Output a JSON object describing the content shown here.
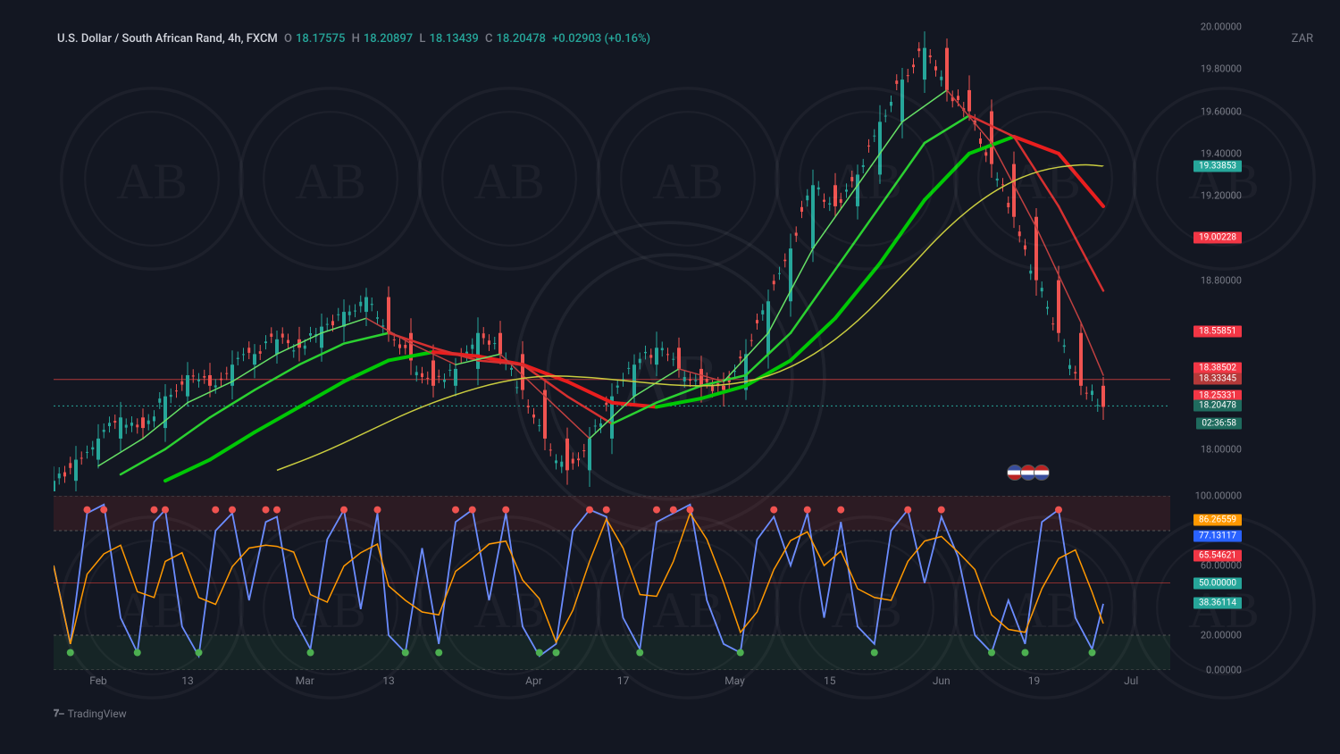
{
  "header": {
    "pair": "U.S. Dollar / South African Rand, 4h, FXCM",
    "O_label": "O",
    "O": "18.17575",
    "H_label": "H",
    "H": "18.20897",
    "L_label": "L",
    "L": "18.13439",
    "C_label": "C",
    "C": "18.20478",
    "change": "+0.02903 (+0.16%)",
    "currency": "ZAR"
  },
  "main": {
    "ymin": 17.8,
    "ymax": 20.0,
    "yticks": [
      {
        "v": 20.0,
        "l": "20.00000"
      },
      {
        "v": 19.8,
        "l": "19.80000"
      },
      {
        "v": 19.6,
        "l": "19.60000"
      },
      {
        "v": 19.4,
        "l": "19.40000"
      },
      {
        "v": 19.2,
        "l": "19.20000"
      },
      {
        "v": 18.8,
        "l": "18.80000"
      },
      {
        "v": 18.0,
        "l": "18.00000"
      }
    ],
    "price_tags": [
      {
        "v": 19.33853,
        "l": "19.33853",
        "bg": "#26a69a"
      },
      {
        "v": 19.00228,
        "l": "19.00228",
        "bg": "#f23645"
      },
      {
        "v": 18.55851,
        "l": "18.55851",
        "bg": "#f23645"
      },
      {
        "v": 18.38502,
        "l": "18.38502",
        "bg": "#f23645"
      },
      {
        "v": 18.33345,
        "l": "18.33345",
        "bg": "#b33939"
      },
      {
        "v": 18.25331,
        "l": "18.25331",
        "bg": "#f23645"
      },
      {
        "v": 18.20478,
        "l": "18.20478",
        "bg": "#1f6b5e"
      },
      {
        "v": 18.12,
        "l": "02:36:58",
        "bg": "#1f6b5e"
      }
    ],
    "hline_red": 18.33,
    "candles_color_up": "#26a69a",
    "candles_color_down": "#ef5350",
    "ma_green_thick": "#00c805",
    "ma_green_thin": "#4caf50",
    "ma_red_thick": "#e91e1e",
    "ma_red_thin": "#b71c1c",
    "ma_yellow": "#c9cc3f",
    "grid_color": "#1e222d"
  },
  "indicator": {
    "ymin": 0,
    "ymax": 100,
    "yticks": [
      {
        "v": 100,
        "l": "100.00000"
      },
      {
        "v": 60,
        "l": "60.00000"
      },
      {
        "v": 20,
        "l": "20.00000"
      },
      {
        "v": 0,
        "l": "0.00000"
      }
    ],
    "price_tags": [
      {
        "v": 86.26559,
        "l": "86.26559",
        "bg": "#ff9800"
      },
      {
        "v": 77.13117,
        "l": "77.13117",
        "bg": "#2962ff"
      },
      {
        "v": 65.54621,
        "l": "65.54621",
        "bg": "#f23645"
      },
      {
        "v": 50.0,
        "l": "50.00000",
        "bg": "#26a69a"
      },
      {
        "v": 38.36114,
        "l": "38.36114",
        "bg": "#26a69a"
      }
    ],
    "overbought_fill": "rgba(120,40,40,0.25)",
    "oversold_fill": "rgba(30,80,50,0.25)",
    "line_blue": "#6b8cff",
    "line_orange": "#ff9800",
    "dot_green": "#4caf50",
    "dot_red": "#ef5350"
  },
  "x_axis": {
    "ticks": [
      {
        "x": 0.04,
        "l": "Feb"
      },
      {
        "x": 0.12,
        "l": "13"
      },
      {
        "x": 0.225,
        "l": "Mar"
      },
      {
        "x": 0.3,
        "l": "13"
      },
      {
        "x": 0.43,
        "l": "Apr"
      },
      {
        "x": 0.51,
        "l": "17"
      },
      {
        "x": 0.61,
        "l": "May"
      },
      {
        "x": 0.695,
        "l": "15"
      },
      {
        "x": 0.795,
        "l": "Jun"
      },
      {
        "x": 0.878,
        "l": "19"
      },
      {
        "x": 0.965,
        "l": "Jul"
      }
    ]
  },
  "footer": {
    "brand": "TradingView"
  },
  "price_path": [
    [
      0.0,
      17.85
    ],
    [
      0.02,
      17.95
    ],
    [
      0.04,
      18.05
    ],
    [
      0.06,
      18.15
    ],
    [
      0.08,
      18.1
    ],
    [
      0.1,
      18.25
    ],
    [
      0.12,
      18.35
    ],
    [
      0.14,
      18.3
    ],
    [
      0.16,
      18.4
    ],
    [
      0.18,
      18.45
    ],
    [
      0.2,
      18.52
    ],
    [
      0.22,
      18.48
    ],
    [
      0.24,
      18.58
    ],
    [
      0.26,
      18.65
    ],
    [
      0.28,
      18.72
    ],
    [
      0.3,
      18.55
    ],
    [
      0.32,
      18.42
    ],
    [
      0.34,
      18.3
    ],
    [
      0.36,
      18.38
    ],
    [
      0.38,
      18.55
    ],
    [
      0.4,
      18.45
    ],
    [
      0.42,
      18.28
    ],
    [
      0.44,
      18.05
    ],
    [
      0.46,
      17.9
    ],
    [
      0.48,
      18.05
    ],
    [
      0.5,
      18.25
    ],
    [
      0.52,
      18.4
    ],
    [
      0.54,
      18.48
    ],
    [
      0.56,
      18.38
    ],
    [
      0.58,
      18.3
    ],
    [
      0.6,
      18.28
    ],
    [
      0.62,
      18.45
    ],
    [
      0.64,
      18.7
    ],
    [
      0.66,
      18.95
    ],
    [
      0.68,
      19.25
    ],
    [
      0.7,
      19.15
    ],
    [
      0.72,
      19.3
    ],
    [
      0.74,
      19.55
    ],
    [
      0.76,
      19.75
    ],
    [
      0.78,
      19.9
    ],
    [
      0.8,
      19.7
    ],
    [
      0.82,
      19.6
    ],
    [
      0.84,
      19.35
    ],
    [
      0.86,
      19.1
    ],
    [
      0.88,
      18.8
    ],
    [
      0.9,
      18.55
    ],
    [
      0.92,
      18.3
    ],
    [
      0.94,
      18.2
    ]
  ],
  "ma_fast": [
    [
      0.04,
      17.92
    ],
    [
      0.08,
      18.05
    ],
    [
      0.12,
      18.22
    ],
    [
      0.16,
      18.32
    ],
    [
      0.2,
      18.45
    ],
    [
      0.24,
      18.55
    ],
    [
      0.28,
      18.62
    ],
    [
      0.32,
      18.5
    ],
    [
      0.36,
      18.4
    ],
    [
      0.4,
      18.45
    ],
    [
      0.44,
      18.25
    ],
    [
      0.48,
      18.05
    ],
    [
      0.52,
      18.25
    ],
    [
      0.56,
      18.38
    ],
    [
      0.6,
      18.32
    ],
    [
      0.64,
      18.55
    ],
    [
      0.68,
      18.95
    ],
    [
      0.72,
      19.25
    ],
    [
      0.76,
      19.55
    ],
    [
      0.8,
      19.7
    ],
    [
      0.84,
      19.45
    ],
    [
      0.88,
      19.05
    ],
    [
      0.92,
      18.6
    ],
    [
      0.94,
      18.35
    ]
  ],
  "ma_med": [
    [
      0.06,
      17.88
    ],
    [
      0.1,
      18.0
    ],
    [
      0.14,
      18.15
    ],
    [
      0.18,
      18.28
    ],
    [
      0.22,
      18.4
    ],
    [
      0.26,
      18.5
    ],
    [
      0.3,
      18.55
    ],
    [
      0.34,
      18.48
    ],
    [
      0.38,
      18.42
    ],
    [
      0.42,
      18.4
    ],
    [
      0.46,
      18.25
    ],
    [
      0.5,
      18.12
    ],
    [
      0.54,
      18.22
    ],
    [
      0.58,
      18.3
    ],
    [
      0.62,
      18.35
    ],
    [
      0.66,
      18.55
    ],
    [
      0.7,
      18.85
    ],
    [
      0.74,
      19.15
    ],
    [
      0.78,
      19.45
    ],
    [
      0.82,
      19.58
    ],
    [
      0.86,
      19.48
    ],
    [
      0.9,
      19.15
    ],
    [
      0.94,
      18.75
    ]
  ],
  "ma_slow": [
    [
      0.1,
      17.85
    ],
    [
      0.14,
      17.95
    ],
    [
      0.18,
      18.08
    ],
    [
      0.22,
      18.2
    ],
    [
      0.26,
      18.32
    ],
    [
      0.3,
      18.42
    ],
    [
      0.34,
      18.46
    ],
    [
      0.38,
      18.44
    ],
    [
      0.42,
      18.4
    ],
    [
      0.46,
      18.32
    ],
    [
      0.5,
      18.22
    ],
    [
      0.54,
      18.2
    ],
    [
      0.58,
      18.24
    ],
    [
      0.62,
      18.3
    ],
    [
      0.66,
      18.42
    ],
    [
      0.7,
      18.62
    ],
    [
      0.74,
      18.88
    ],
    [
      0.78,
      19.18
    ],
    [
      0.82,
      19.4
    ],
    [
      0.86,
      19.48
    ],
    [
      0.9,
      19.4
    ],
    [
      0.94,
      19.15
    ]
  ],
  "ma_long": [
    [
      0.2,
      17.9
    ],
    [
      0.24,
      17.98
    ],
    [
      0.28,
      18.08
    ],
    [
      0.32,
      18.18
    ],
    [
      0.36,
      18.26
    ],
    [
      0.4,
      18.32
    ],
    [
      0.44,
      18.35
    ],
    [
      0.48,
      18.34
    ],
    [
      0.52,
      18.32
    ],
    [
      0.56,
      18.3
    ],
    [
      0.6,
      18.3
    ],
    [
      0.64,
      18.34
    ],
    [
      0.68,
      18.44
    ],
    [
      0.72,
      18.6
    ],
    [
      0.76,
      18.82
    ],
    [
      0.8,
      19.05
    ],
    [
      0.84,
      19.22
    ],
    [
      0.88,
      19.32
    ],
    [
      0.92,
      19.35
    ],
    [
      0.94,
      19.34
    ]
  ],
  "stoch_k": [
    [
      0.0,
      60
    ],
    [
      0.015,
      15
    ],
    [
      0.03,
      90
    ],
    [
      0.045,
      95
    ],
    [
      0.06,
      30
    ],
    [
      0.075,
      10
    ],
    [
      0.09,
      85
    ],
    [
      0.1,
      92
    ],
    [
      0.115,
      25
    ],
    [
      0.13,
      8
    ],
    [
      0.145,
      80
    ],
    [
      0.16,
      90
    ],
    [
      0.175,
      40
    ],
    [
      0.19,
      85
    ],
    [
      0.2,
      88
    ],
    [
      0.215,
      30
    ],
    [
      0.23,
      12
    ],
    [
      0.245,
      75
    ],
    [
      0.26,
      92
    ],
    [
      0.275,
      35
    ],
    [
      0.29,
      90
    ],
    [
      0.3,
      20
    ],
    [
      0.315,
      10
    ],
    [
      0.33,
      70
    ],
    [
      0.345,
      15
    ],
    [
      0.36,
      85
    ],
    [
      0.375,
      92
    ],
    [
      0.39,
      40
    ],
    [
      0.405,
      90
    ],
    [
      0.42,
      25
    ],
    [
      0.435,
      8
    ],
    [
      0.45,
      15
    ],
    [
      0.465,
      80
    ],
    [
      0.48,
      92
    ],
    [
      0.495,
      88
    ],
    [
      0.51,
      30
    ],
    [
      0.525,
      12
    ],
    [
      0.54,
      85
    ],
    [
      0.555,
      90
    ],
    [
      0.57,
      95
    ],
    [
      0.585,
      40
    ],
    [
      0.6,
      15
    ],
    [
      0.615,
      10
    ],
    [
      0.63,
      75
    ],
    [
      0.645,
      88
    ],
    [
      0.66,
      60
    ],
    [
      0.675,
      90
    ],
    [
      0.69,
      30
    ],
    [
      0.705,
      85
    ],
    [
      0.72,
      25
    ],
    [
      0.735,
      15
    ],
    [
      0.75,
      80
    ],
    [
      0.765,
      92
    ],
    [
      0.78,
      50
    ],
    [
      0.795,
      88
    ],
    [
      0.81,
      65
    ],
    [
      0.825,
      20
    ],
    [
      0.84,
      10
    ],
    [
      0.855,
      40
    ],
    [
      0.87,
      15
    ],
    [
      0.885,
      85
    ],
    [
      0.9,
      92
    ],
    [
      0.915,
      30
    ],
    [
      0.93,
      12
    ],
    [
      0.94,
      38
    ]
  ],
  "stoch_dots_top": [
    0.03,
    0.045,
    0.09,
    0.1,
    0.145,
    0.16,
    0.19,
    0.2,
    0.26,
    0.29,
    0.36,
    0.375,
    0.405,
    0.48,
    0.495,
    0.54,
    0.555,
    0.57,
    0.645,
    0.675,
    0.705,
    0.765,
    0.795,
    0.9
  ],
  "stoch_dots_bot": [
    0.015,
    0.075,
    0.13,
    0.23,
    0.315,
    0.345,
    0.435,
    0.45,
    0.525,
    0.615,
    0.735,
    0.84,
    0.87,
    0.93
  ]
}
